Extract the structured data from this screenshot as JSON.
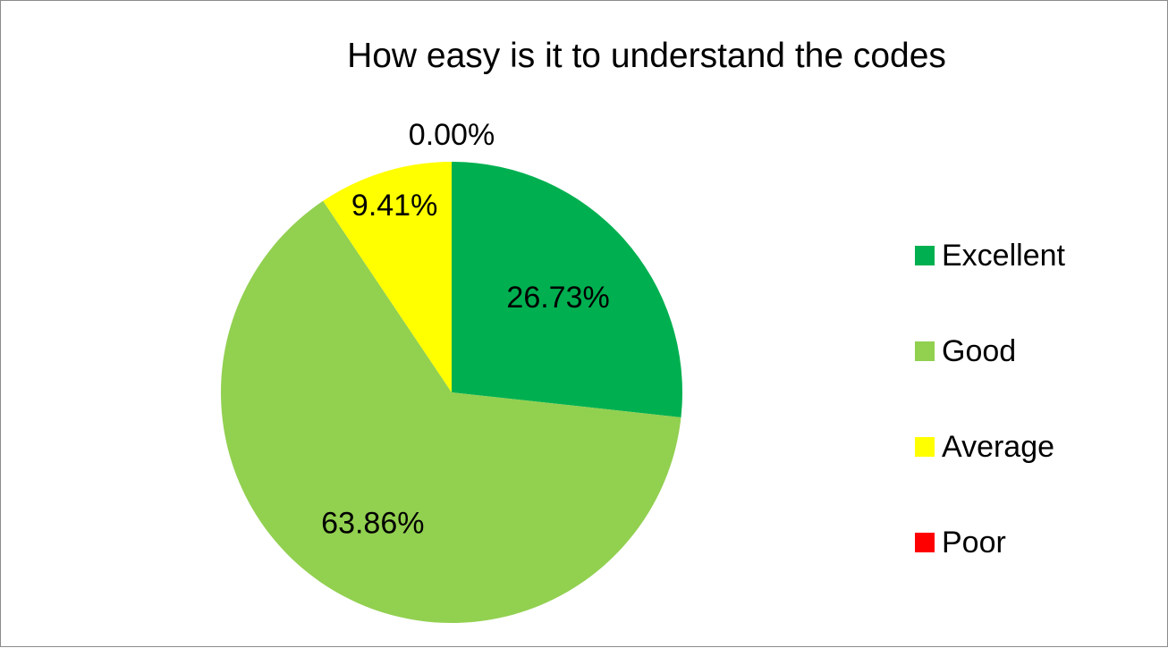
{
  "chart_data": {
    "type": "pie",
    "title": "How easy is it to understand the codes",
    "categories": [
      "Excellent",
      "Good",
      "Average",
      "Poor"
    ],
    "values": [
      26.73,
      63.86,
      9.41,
      0.0
    ],
    "labels": [
      "26.73%",
      "63.86%",
      "9.41%",
      "0.00%"
    ],
    "colors": [
      "#00b050",
      "#92d050",
      "#ffff00",
      "#ff0000"
    ],
    "start_angle_deg": 0,
    "direction": "clockwise",
    "legend": "right"
  }
}
